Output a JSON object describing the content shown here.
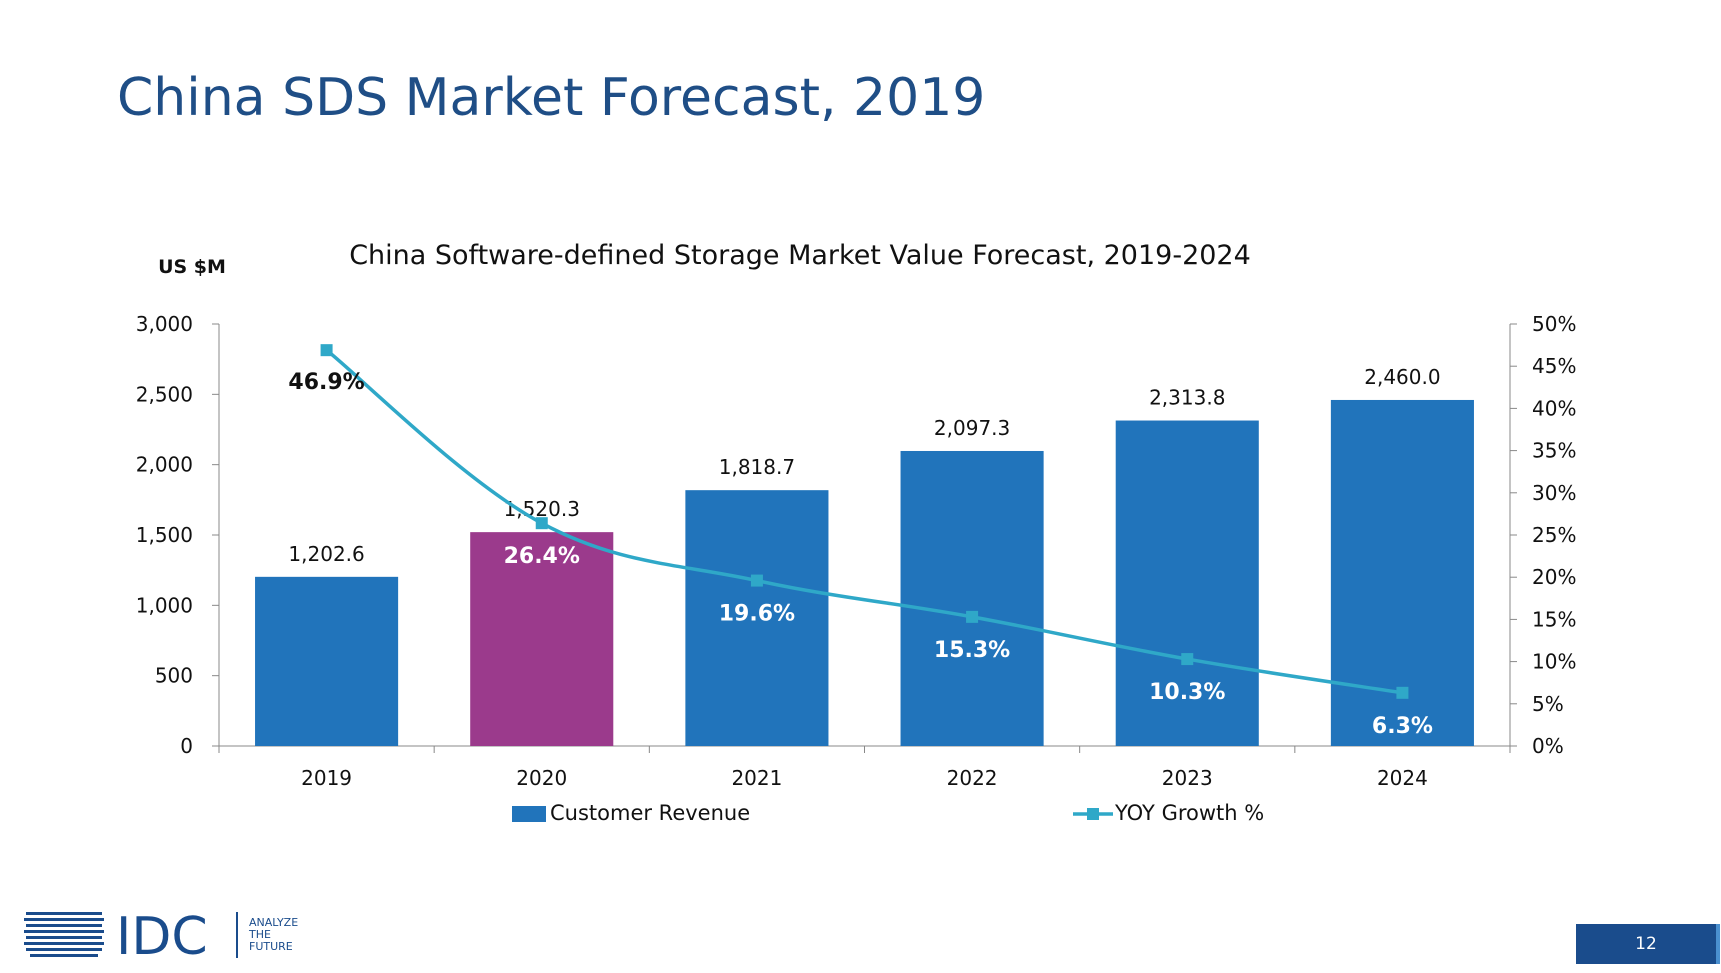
{
  "slide": {
    "title": "China SDS Market Forecast, 2019",
    "page_number": "12"
  },
  "logo": {
    "wordmark": "IDC",
    "tagline": [
      "ANALYZE",
      "THE",
      "FUTURE"
    ]
  },
  "colors": {
    "bar": "#2174bb",
    "bar_highlight": "#9b3a8c",
    "line": "#2fa8c8",
    "title": "#1f4e86",
    "badge": "#1a4c8c"
  },
  "chart_data": {
    "type": "bar",
    "title": "China Software-defined Storage Market Value Forecast, 2019-2024",
    "ylabel": "US $M",
    "categories": [
      "2019",
      "2020",
      "2021",
      "2022",
      "2023",
      "2024"
    ],
    "ylim": [
      0,
      3000
    ],
    "yticks": [
      "0",
      "500",
      "1,000",
      "1,500",
      "2,000",
      "2,500",
      "3,000"
    ],
    "y2lim": [
      0,
      50
    ],
    "y2ticks": [
      "0%",
      "5%",
      "10%",
      "15%",
      "20%",
      "25%",
      "30%",
      "35%",
      "40%",
      "45%",
      "50%"
    ],
    "highlight_index": 1,
    "series": [
      {
        "name": "Customer Revenue",
        "type": "bar",
        "axis": "left",
        "values": [
          1202.6,
          1520.3,
          1818.7,
          2097.3,
          2313.8,
          2460.0
        ],
        "labels": [
          "1,202.6",
          "1,520.3",
          "1,818.7",
          "2,097.3",
          "2,313.8",
          "2,460.0"
        ]
      },
      {
        "name": "YOY Growth %",
        "type": "line",
        "axis": "right",
        "values": [
          46.9,
          26.4,
          19.6,
          15.3,
          10.3,
          6.3
        ],
        "labels": [
          "46.9%",
          "26.4%",
          "19.6%",
          "15.3%",
          "10.3%",
          "6.3%"
        ]
      }
    ],
    "legend_position": "bottom",
    "grid": false
  }
}
